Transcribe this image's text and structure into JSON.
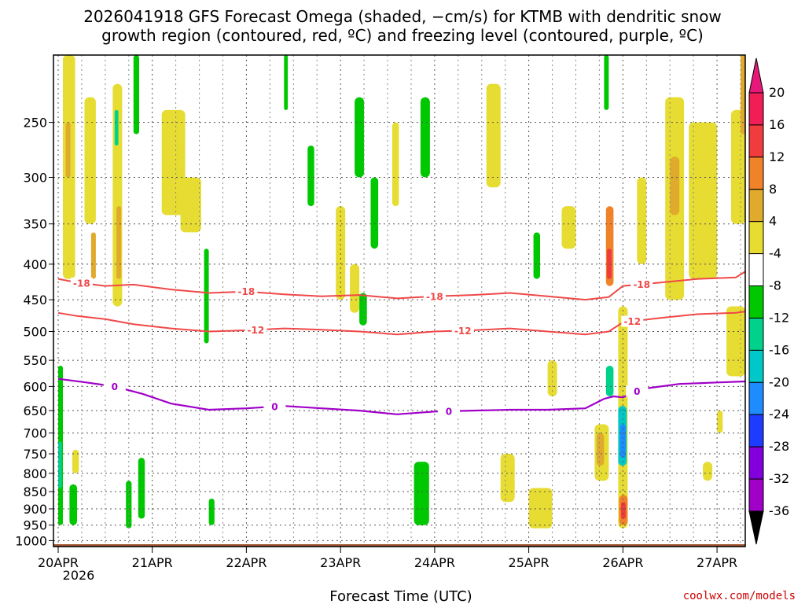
{
  "chart_data": {
    "type": "heatmap",
    "title_line1": "2026041918 GFS Forecast Omega (shaded, −cm/s) for KTMB with dendritic snow",
    "title_line2": "growth region (contoured, red, ºC) and freezing level (contoured, purple, ºC)",
    "xlabel": "Forecast Time (UTC)",
    "x_ticks": [
      "20APR",
      "21APR",
      "22APR",
      "23APR",
      "24APR",
      "25APR",
      "26APR",
      "27APR"
    ],
    "x_year": "2026",
    "xlim_days": [
      -0.05,
      7.3
    ],
    "y_ticks": [
      250,
      300,
      350,
      400,
      450,
      500,
      550,
      600,
      650,
      700,
      750,
      800,
      850,
      900,
      950,
      1000
    ],
    "ylim_hpa": [
      200,
      1020
    ],
    "colorbar": {
      "labels": [
        "20",
        "16",
        "12",
        "8",
        "4",
        "-4",
        "-8",
        "-12",
        "-16",
        "-20",
        "-24",
        "-28",
        "-32",
        "-36"
      ],
      "colors": [
        "#f01e54",
        "#f03c3c",
        "#f0822a",
        "#e0aa2c",
        "#e6dc32",
        "#ffffff",
        "#00c800",
        "#00d28c",
        "#00c8c8",
        "#1e8cff",
        "#1e3cff",
        "#8200dc",
        "#a000c8",
        "#aaaaaa"
      ],
      "over_color": "#e6187a",
      "under_color": "#000000"
    },
    "contours": [
      {
        "label": "-18",
        "color": "#f04848",
        "kind": "dendritic",
        "x": [
          0,
          0.2,
          0.5,
          0.8,
          1.2,
          1.6,
          2.0,
          2.4,
          2.8,
          3.2,
          3.6,
          4.0,
          4.4,
          4.8,
          5.2,
          5.6,
          5.85,
          6.0,
          6.4,
          6.8,
          7.2,
          7.3
        ],
        "p": [
          420,
          425,
          430,
          428,
          435,
          440,
          438,
          442,
          445,
          443,
          448,
          445,
          443,
          440,
          445,
          450,
          446,
          430,
          425,
          420,
          418,
          410
        ],
        "labels_at": [
          0.25,
          2.0,
          4.0,
          6.2
        ]
      },
      {
        "label": "-12",
        "color": "#f04848",
        "kind": "dendritic",
        "x": [
          0,
          0.2,
          0.5,
          0.8,
          1.2,
          1.6,
          2.0,
          2.4,
          2.8,
          3.2,
          3.6,
          4.0,
          4.4,
          4.8,
          5.2,
          5.6,
          5.85,
          6.0,
          6.4,
          6.8,
          7.2,
          7.3
        ],
        "p": [
          470,
          475,
          480,
          488,
          495,
          500,
          498,
          495,
          497,
          500,
          505,
          500,
          498,
          495,
          500,
          505,
          500,
          485,
          478,
          472,
          470,
          468
        ],
        "labels_at": [
          2.1,
          4.3,
          6.1
        ]
      },
      {
        "label": "0",
        "color": "#a000c8",
        "kind": "freezing",
        "x": [
          0,
          0.3,
          0.6,
          0.9,
          1.2,
          1.6,
          2.0,
          2.4,
          2.8,
          3.2,
          3.6,
          4.0,
          4.4,
          4.8,
          5.2,
          5.6,
          5.8,
          5.9,
          6.0,
          6.2,
          6.6,
          7.0,
          7.3
        ],
        "p": [
          585,
          592,
          600,
          615,
          635,
          648,
          645,
          640,
          645,
          650,
          658,
          652,
          650,
          648,
          648,
          645,
          625,
          620,
          622,
          605,
          595,
          592,
          590
        ],
        "labels_at": [
          0.6,
          2.3,
          4.15,
          6.15
        ]
      }
    ],
    "shaded_regions": [
      {
        "value": -6,
        "x0": 0.0,
        "x1": 0.05,
        "p0": 560,
        "p1": 950
      },
      {
        "value": -10,
        "x0": 0.0,
        "x1": 0.04,
        "p0": 720,
        "p1": 840
      },
      {
        "value": 6,
        "x0": 0.05,
        "x1": 0.18,
        "p0": 200,
        "p1": 420
      },
      {
        "value": 10,
        "x0": 0.08,
        "x1": 0.13,
        "p0": 250,
        "p1": 300
      },
      {
        "value": -6,
        "x0": 0.12,
        "x1": 0.2,
        "p0": 830,
        "p1": 950
      },
      {
        "value": 6,
        "x0": 0.15,
        "x1": 0.22,
        "p0": 740,
        "p1": 800
      },
      {
        "value": 6,
        "x0": 0.28,
        "x1": 0.4,
        "p0": 230,
        "p1": 350
      },
      {
        "value": 10,
        "x0": 0.35,
        "x1": 0.4,
        "p0": 360,
        "p1": 420
      },
      {
        "value": 6,
        "x0": 0.58,
        "x1": 0.68,
        "p0": 220,
        "p1": 460
      },
      {
        "value": -10,
        "x0": 0.6,
        "x1": 0.64,
        "p0": 240,
        "p1": 270
      },
      {
        "value": 10,
        "x0": 0.62,
        "x1": 0.67,
        "p0": 330,
        "p1": 420
      },
      {
        "value": -6,
        "x0": 0.8,
        "x1": 0.86,
        "p0": 200,
        "p1": 260
      },
      {
        "value": -6,
        "x0": 0.85,
        "x1": 0.92,
        "p0": 760,
        "p1": 930
      },
      {
        "value": -6,
        "x0": 0.72,
        "x1": 0.78,
        "p0": 820,
        "p1": 960
      },
      {
        "value": 6,
        "x0": 1.1,
        "x1": 1.35,
        "p0": 240,
        "p1": 340
      },
      {
        "value": 6,
        "x0": 1.3,
        "x1": 1.52,
        "p0": 300,
        "p1": 360
      },
      {
        "value": -6,
        "x0": 1.55,
        "x1": 1.6,
        "p0": 380,
        "p1": 520
      },
      {
        "value": -6,
        "x0": 1.6,
        "x1": 1.66,
        "p0": 870,
        "p1": 950
      },
      {
        "value": -6,
        "x0": 2.4,
        "x1": 2.44,
        "p0": 200,
        "p1": 240
      },
      {
        "value": -6,
        "x0": 2.65,
        "x1": 2.72,
        "p0": 270,
        "p1": 330
      },
      {
        "value": 6,
        "x0": 2.95,
        "x1": 3.05,
        "p0": 330,
        "p1": 450
      },
      {
        "value": -6,
        "x0": 3.15,
        "x1": 3.25,
        "p0": 230,
        "p1": 300
      },
      {
        "value": 6,
        "x0": 3.1,
        "x1": 3.2,
        "p0": 400,
        "p1": 470
      },
      {
        "value": -6,
        "x0": 3.2,
        "x1": 3.28,
        "p0": 440,
        "p1": 490
      },
      {
        "value": -6,
        "x0": 3.32,
        "x1": 3.4,
        "p0": 300,
        "p1": 380
      },
      {
        "value": 6,
        "x0": 3.55,
        "x1": 3.62,
        "p0": 250,
        "p1": 330
      },
      {
        "value": -6,
        "x0": 3.85,
        "x1": 3.95,
        "p0": 230,
        "p1": 300
      },
      {
        "value": -10,
        "x0": 3.82,
        "x1": 3.92,
        "p0": 780,
        "p1": 880
      },
      {
        "value": -6,
        "x0": 3.78,
        "x1": 3.94,
        "p0": 770,
        "p1": 950
      },
      {
        "value": 6,
        "x0": 4.55,
        "x1": 4.7,
        "p0": 220,
        "p1": 310
      },
      {
        "value": 6,
        "x0": 4.7,
        "x1": 4.85,
        "p0": 750,
        "p1": 880
      },
      {
        "value": -6,
        "x0": 5.05,
        "x1": 5.12,
        "p0": 360,
        "p1": 420
      },
      {
        "value": 6,
        "x0": 5.2,
        "x1": 5.3,
        "p0": 550,
        "p1": 620
      },
      {
        "value": 6,
        "x0": 5.35,
        "x1": 5.5,
        "p0": 330,
        "p1": 380
      },
      {
        "value": 6,
        "x0": 5.0,
        "x1": 5.25,
        "p0": 840,
        "p1": 960
      },
      {
        "value": 6,
        "x0": 5.7,
        "x1": 5.85,
        "p0": 680,
        "p1": 820
      },
      {
        "value": 10,
        "x0": 5.72,
        "x1": 5.8,
        "p0": 700,
        "p1": 780
      },
      {
        "value": -6,
        "x0": 5.8,
        "x1": 5.85,
        "p0": 200,
        "p1": 240
      },
      {
        "value": 14,
        "x0": 5.82,
        "x1": 5.9,
        "p0": 330,
        "p1": 430
      },
      {
        "value": 18,
        "x0": 5.83,
        "x1": 5.88,
        "p0": 380,
        "p1": 420
      },
      {
        "value": -10,
        "x0": 5.82,
        "x1": 5.9,
        "p0": 560,
        "p1": 620
      },
      {
        "value": 6,
        "x0": 5.95,
        "x1": 6.05,
        "p0": 460,
        "p1": 960
      },
      {
        "value": -14,
        "x0": 5.95,
        "x1": 6.04,
        "p0": 640,
        "p1": 780
      },
      {
        "value": -18,
        "x0": 5.97,
        "x1": 6.03,
        "p0": 680,
        "p1": 760
      },
      {
        "value": 14,
        "x0": 5.96,
        "x1": 6.05,
        "p0": 860,
        "p1": 950
      },
      {
        "value": 18,
        "x0": 5.98,
        "x1": 6.03,
        "p0": 880,
        "p1": 930
      },
      {
        "value": 6,
        "x0": 6.15,
        "x1": 6.25,
        "p0": 300,
        "p1": 400
      },
      {
        "value": 6,
        "x0": 6.45,
        "x1": 6.65,
        "p0": 230,
        "p1": 450
      },
      {
        "value": 10,
        "x0": 6.5,
        "x1": 6.6,
        "p0": 280,
        "p1": 340
      },
      {
        "value": 6,
        "x0": 6.7,
        "x1": 7.0,
        "p0": 250,
        "p1": 420
      },
      {
        "value": 6,
        "x0": 7.15,
        "x1": 7.3,
        "p0": 240,
        "p1": 350
      },
      {
        "value": 10,
        "x0": 7.25,
        "x1": 7.3,
        "p0": 200,
        "p1": 260
      },
      {
        "value": 6,
        "x0": 7.1,
        "x1": 7.3,
        "p0": 460,
        "p1": 580
      },
      {
        "value": 6,
        "x0": 7.0,
        "x1": 7.06,
        "p0": 650,
        "p1": 700
      },
      {
        "value": 6,
        "x0": 6.85,
        "x1": 6.95,
        "p0": 770,
        "p1": 820
      }
    ],
    "ground_color": "#a0522d"
  },
  "credit": "coolwx.com/models"
}
